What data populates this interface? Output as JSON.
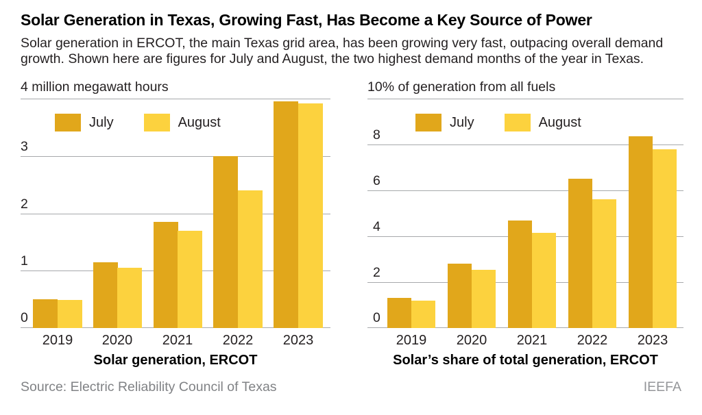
{
  "header": {
    "title": "Solar Generation in Texas, Growing Fast, Has Become a Key Source of Power",
    "subtitle": "Solar generation in ERCOT, the main Texas grid area, has been growing very fast, outpacing overall demand growth. Shown here are figures for July and August, the two highest demand months of the year in Texas."
  },
  "footer": {
    "source": "Source: Electric Reliability Council of Texas",
    "credit": "IEEFA"
  },
  "colors": {
    "july": "#E1A71B",
    "august": "#FCD23E",
    "gridline": "#A6A8AB"
  },
  "chart_data": [
    {
      "type": "bar",
      "axis_label": "4 million megawatt hours",
      "caption": "Solar generation, ERCOT",
      "categories": [
        "2019",
        "2020",
        "2021",
        "2022",
        "2023"
      ],
      "series": [
        {
          "name": "July",
          "values": [
            0.5,
            1.15,
            1.85,
            3.0,
            3.95
          ]
        },
        {
          "name": "August",
          "values": [
            0.49,
            1.05,
            1.7,
            2.4,
            3.92
          ]
        }
      ],
      "ylim": [
        0,
        4
      ],
      "gridlines": [
        4,
        3,
        2,
        1,
        0
      ],
      "yticks": [
        3,
        2,
        1,
        0
      ],
      "legend_position": "top-left",
      "grid": true
    },
    {
      "type": "bar",
      "axis_label": "10% of generation from all fuels",
      "caption": "Solar’s share of total generation, ERCOT",
      "categories": [
        "2019",
        "2020",
        "2021",
        "2022",
        "2023"
      ],
      "series": [
        {
          "name": "July",
          "values": [
            1.3,
            2.8,
            4.7,
            6.5,
            8.35
          ]
        },
        {
          "name": "August",
          "values": [
            1.2,
            2.55,
            4.15,
            5.6,
            7.8
          ]
        }
      ],
      "ylim": [
        0,
        10
      ],
      "gridlines": [
        10,
        8,
        6,
        4,
        2,
        0
      ],
      "yticks": [
        8,
        6,
        4,
        2,
        0
      ],
      "legend_position": "top-left",
      "grid": true
    }
  ]
}
